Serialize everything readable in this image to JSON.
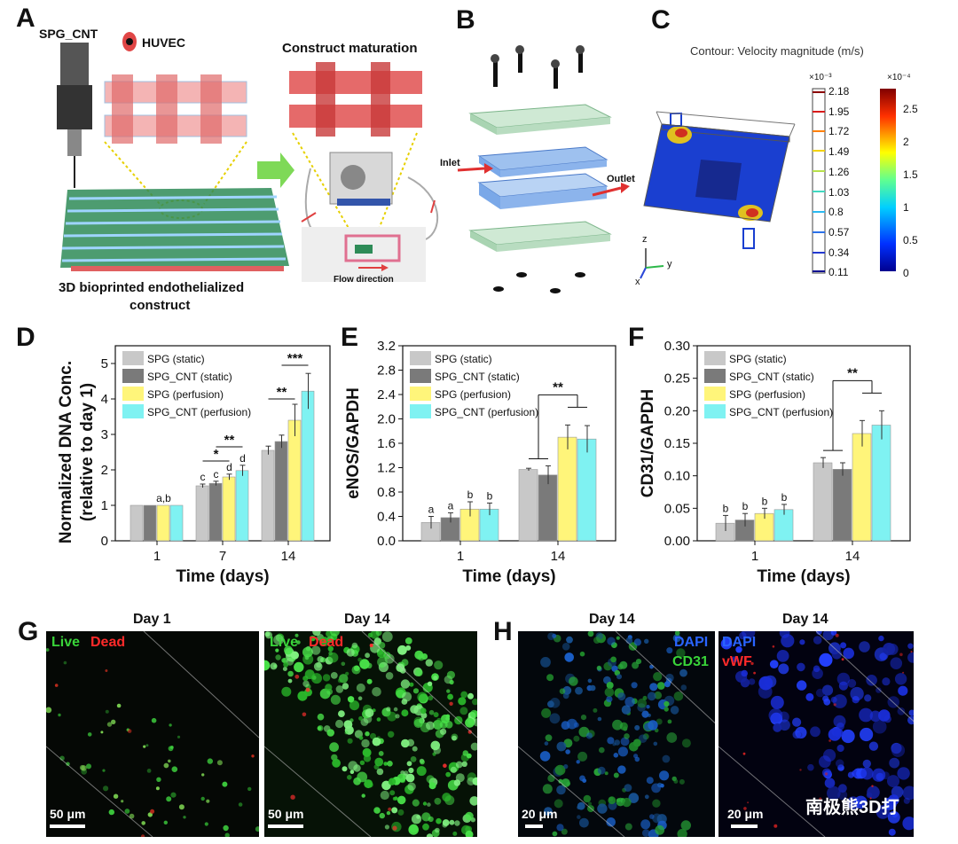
{
  "panels": {
    "A": {
      "letter": "A",
      "printer_label": "SPG_CNT",
      "cell_label": "HUVEC",
      "maturation_label": "Construct maturation",
      "construct_label_1": "3D bioprinted endothelialized",
      "construct_label_2": "construct",
      "flow_label": "Flow direction"
    },
    "B": {
      "letter": "B",
      "inlet": "Inlet",
      "outlet": "Outlet"
    },
    "C": {
      "letter": "C",
      "title": "Contour: Velocity magnitude (m/s)",
      "scale1_exp": "×10⁻³",
      "scale1_ticks": [
        "2.18",
        "1.95",
        "1.72",
        "1.49",
        "1.26",
        "1.03",
        "0.8",
        "0.57",
        "0.34",
        "0.11"
      ],
      "scale2_exp": "×10⁻⁴",
      "scale2_ticks": [
        "2.5",
        "2",
        "1.5",
        "1",
        "0.5",
        "0"
      ],
      "axis_z": "z",
      "axis_y": "y",
      "axis_x": "x"
    },
    "D": {
      "letter": "D"
    },
    "E": {
      "letter": "E"
    },
    "F": {
      "letter": "F"
    },
    "G": {
      "letter": "G",
      "day1": "Day 1",
      "day14": "Day 14",
      "live": "Live",
      "dead": "Dead",
      "scale": "50 μm"
    },
    "H": {
      "letter": "H",
      "day14a": "Day 14",
      "day14b": "Day 14",
      "dapi": "DAPI",
      "cd31": "CD31",
      "vwf": "vWF",
      "scale": "20 μm"
    }
  },
  "watermark": "南极熊3D打",
  "colors": {
    "spg_static": "#c8c8c8",
    "spg_cnt_static": "#7a7a7a",
    "spg_perf": "#fff57a",
    "spg_cnt_perf": "#7ff2f2"
  },
  "chart_data": [
    {
      "type": "bar",
      "id": "D",
      "ylabel_1": "Normalized DNA Conc.",
      "ylabel_2": "(relative to day 1)",
      "xlabel": "Time (days)",
      "categories": [
        "1",
        "7",
        "14"
      ],
      "ylim": [
        0,
        5.5
      ],
      "yticks": [
        "0",
        "1",
        "2",
        "3",
        "4",
        "5"
      ],
      "series": [
        {
          "name": "SPG (static)",
          "values": [
            1,
            1.55,
            2.55
          ],
          "err": [
            0,
            0.05,
            0.12
          ]
        },
        {
          "name": "SPG_CNT (static)",
          "values": [
            1,
            1.62,
            2.8
          ],
          "err": [
            0,
            0.06,
            0.18
          ]
        },
        {
          "name": "SPG (perfusion)",
          "values": [
            1,
            1.8,
            3.4
          ],
          "err": [
            0,
            0.08,
            0.45
          ]
        },
        {
          "name": "SPG_CNT (perfusion)",
          "values": [
            1,
            1.98,
            4.22
          ],
          "err": [
            0,
            0.15,
            0.5
          ]
        }
      ],
      "letters": [
        [
          "",
          "",
          "a,b",
          ""
        ],
        [
          "c",
          "c",
          "d",
          "d"
        ],
        [
          "",
          "",
          "",
          ""
        ]
      ],
      "sig": [
        {
          "label": "*"
        },
        {
          "label": "**"
        },
        {
          "label": "**"
        },
        {
          "label": "***"
        }
      ]
    },
    {
      "type": "bar",
      "id": "E",
      "ylabel": "eNOS/GAPDH",
      "xlabel": "Time (days)",
      "categories": [
        "1",
        "14"
      ],
      "ylim": [
        0,
        3.2
      ],
      "yticks": [
        "0.0",
        "0.4",
        "0.8",
        "1.2",
        "1.6",
        "2.0",
        "2.4",
        "2.8",
        "3.2"
      ],
      "series": [
        {
          "name": "SPG (static)",
          "values": [
            0.3,
            1.17
          ],
          "err": [
            0.1,
            0.02
          ]
        },
        {
          "name": "SPG_CNT (static)",
          "values": [
            0.38,
            1.08
          ],
          "err": [
            0.08,
            0.15
          ]
        },
        {
          "name": "SPG (perfusion)",
          "values": [
            0.52,
            1.7
          ],
          "err": [
            0.12,
            0.2
          ]
        },
        {
          "name": "SPG_CNT (perfusion)",
          "values": [
            0.52,
            1.67
          ],
          "err": [
            0.1,
            0.22
          ]
        }
      ],
      "letters": [
        [
          "a",
          "a",
          "b",
          "b"
        ],
        [
          "",
          "",
          "",
          ""
        ]
      ],
      "sig": [
        {
          "label": "**"
        }
      ]
    },
    {
      "type": "bar",
      "id": "F",
      "ylabel": "CD31/GAPDH",
      "xlabel": "Time (days)",
      "categories": [
        "1",
        "14"
      ],
      "ylim": [
        0,
        0.3
      ],
      "yticks": [
        "0.00",
        "0.05",
        "0.10",
        "0.15",
        "0.20",
        "0.25",
        "0.30"
      ],
      "series": [
        {
          "name": "SPG (static)",
          "values": [
            0.027,
            0.12
          ],
          "err": [
            0.012,
            0.008
          ]
        },
        {
          "name": "SPG_CNT (static)",
          "values": [
            0.032,
            0.11
          ],
          "err": [
            0.01,
            0.01
          ]
        },
        {
          "name": "SPG (perfusion)",
          "values": [
            0.042,
            0.165
          ],
          "err": [
            0.008,
            0.02
          ]
        },
        {
          "name": "SPG_CNT (perfusion)",
          "values": [
            0.048,
            0.178
          ],
          "err": [
            0.008,
            0.022
          ]
        }
      ],
      "letters": [
        [
          "b",
          "b",
          "b",
          "b"
        ],
        [
          "",
          "",
          "",
          ""
        ]
      ],
      "sig": [
        {
          "label": "**"
        }
      ]
    }
  ]
}
